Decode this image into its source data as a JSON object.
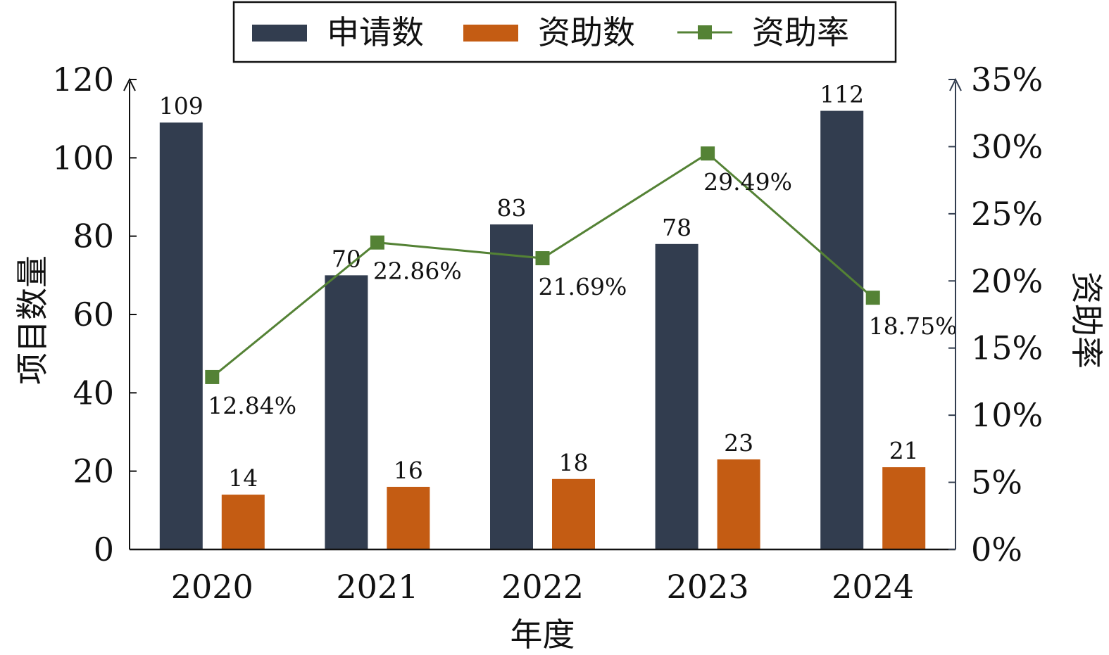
{
  "chart_data": {
    "type": "bar",
    "categories": [
      "2020",
      "2021",
      "2022",
      "2023",
      "2024"
    ],
    "series": [
      {
        "name": "申请数",
        "type": "bar",
        "axis": "left",
        "color": "#323d4f",
        "values": [
          109,
          70,
          83,
          78,
          112
        ]
      },
      {
        "name": "资助数",
        "type": "bar",
        "axis": "left",
        "color": "#c45c13",
        "values": [
          14,
          16,
          18,
          23,
          21
        ]
      },
      {
        "name": "资助率",
        "type": "line",
        "axis": "right",
        "color": "#548235",
        "marker": "square",
        "values": [
          12.84,
          22.86,
          21.69,
          29.49,
          18.75
        ],
        "labels": [
          "12.84%",
          "22.86%",
          "21.69%",
          "29.49%",
          "18.75%"
        ]
      }
    ],
    "xlabel": "年度",
    "ylabel": "项目数量",
    "y2label": "资助率",
    "ylim": [
      0,
      120
    ],
    "y2lim": [
      0,
      35
    ],
    "yticks": [
      "0",
      "20",
      "40",
      "60",
      "80",
      "100",
      "120"
    ],
    "y2ticks": [
      "0%",
      "5%",
      "10%",
      "15%",
      "20%",
      "25%",
      "30%",
      "35%"
    ],
    "legend": "top-center",
    "grid": false
  }
}
